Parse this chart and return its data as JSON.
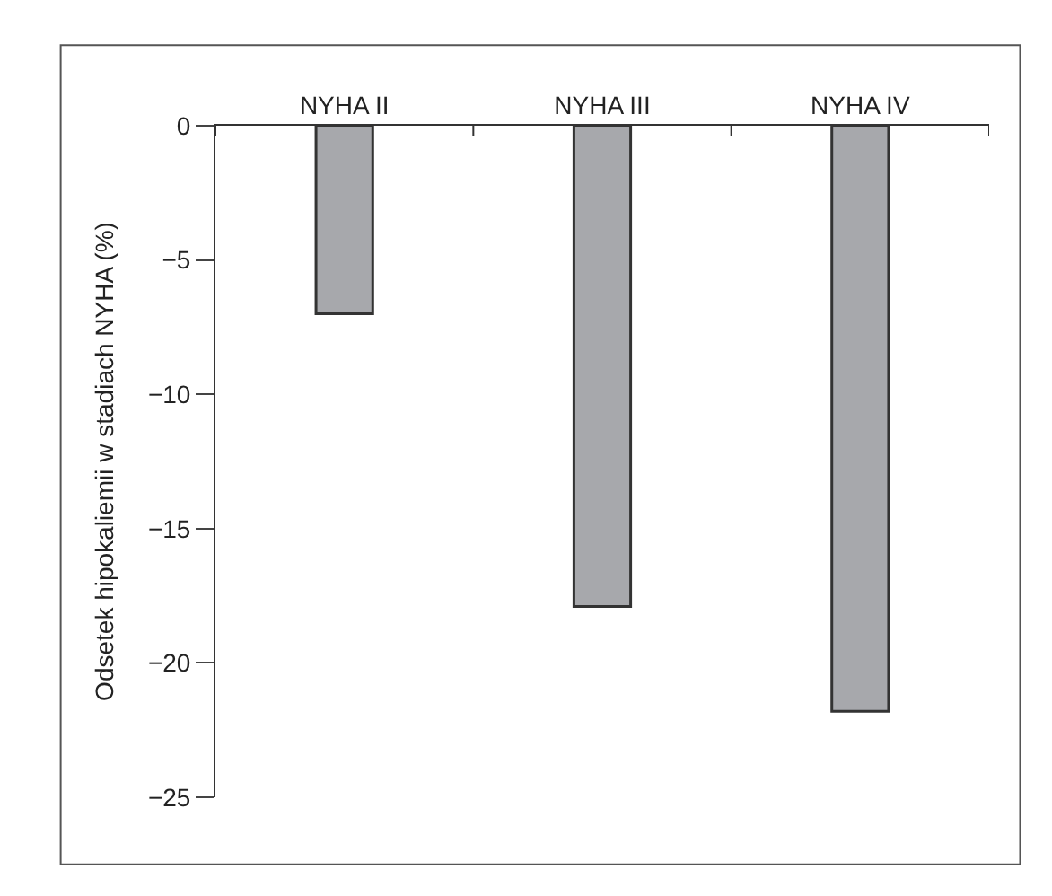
{
  "chart_data": {
    "type": "bar",
    "ylabel": "Odsetek hipokaliemii w stadiach NYHA (%)",
    "categories": [
      "NYHA II",
      "NYHA III",
      "NYHA IV"
    ],
    "series": [
      {
        "color": "#a7a8ac",
        "values": [
          -7.0,
          -17.9,
          -21.8
        ]
      }
    ],
    "ylim": [
      -25,
      0
    ],
    "yticks": [
      {
        "value": 0,
        "label": "0"
      },
      {
        "value": -5,
        "label": "−5"
      },
      {
        "value": -10,
        "label": "−10"
      },
      {
        "value": -15,
        "label": "−15"
      },
      {
        "value": -20,
        "label": "−20"
      },
      {
        "value": -25,
        "label": "−25"
      }
    ]
  }
}
